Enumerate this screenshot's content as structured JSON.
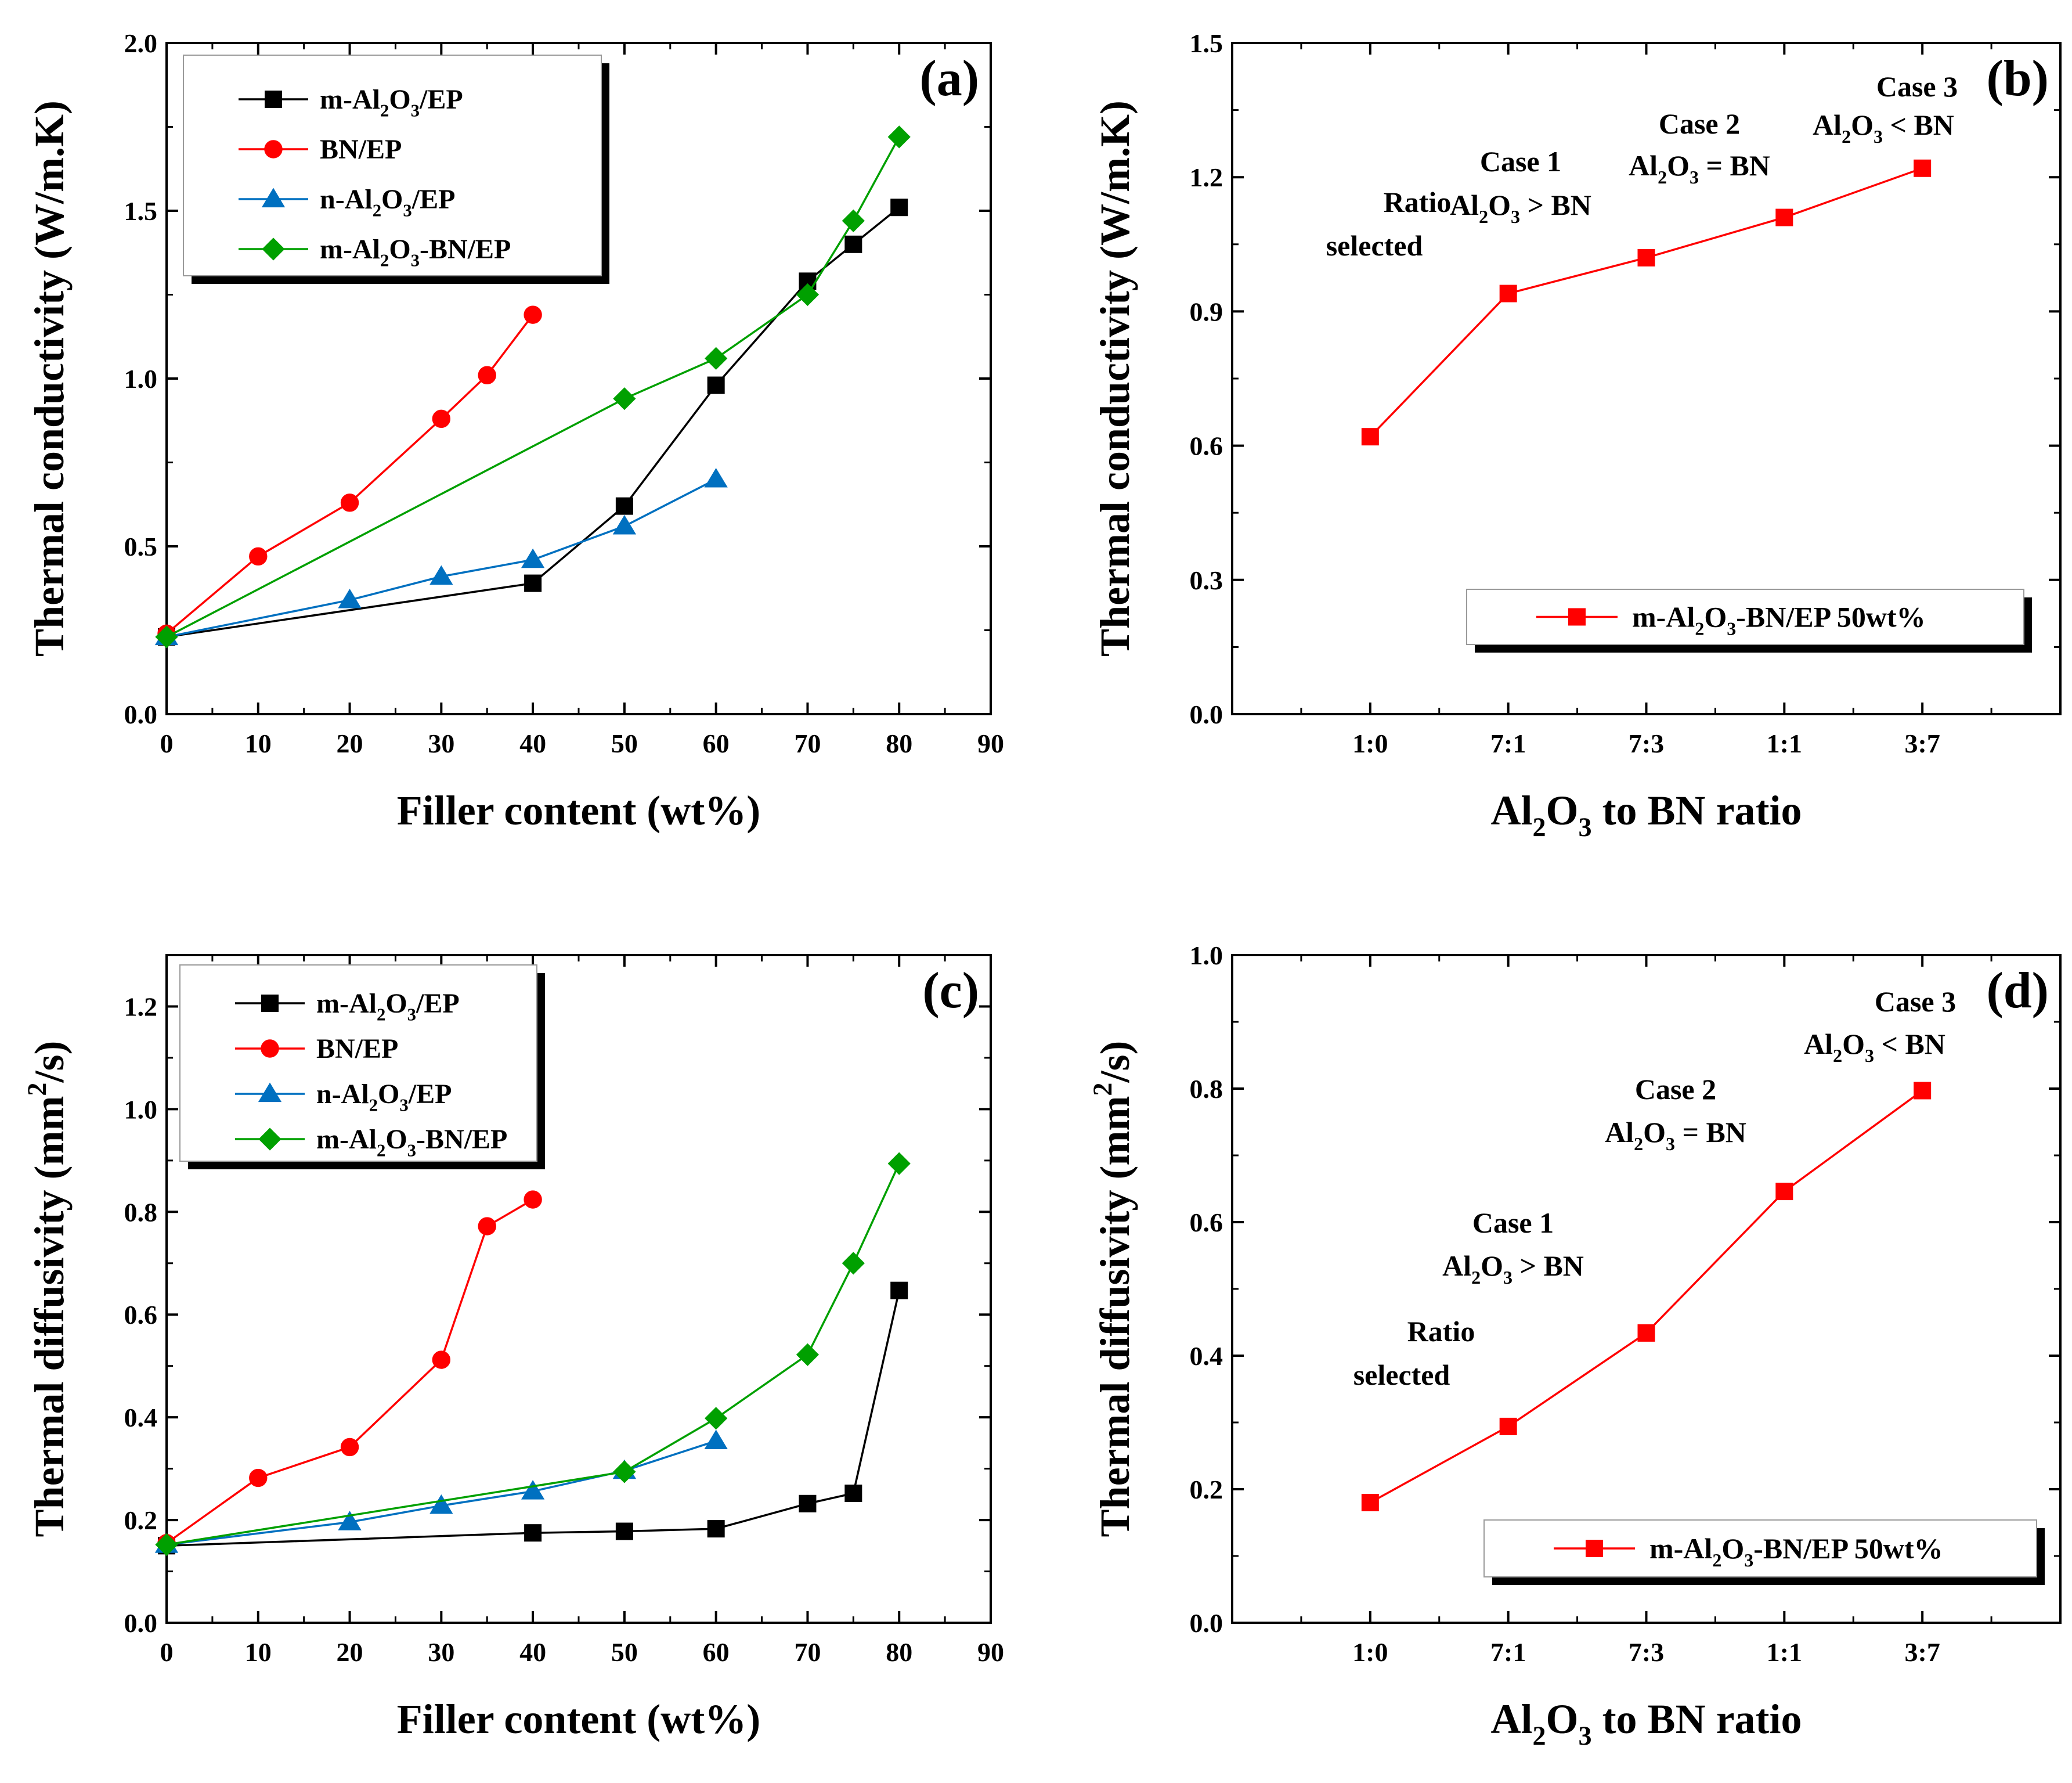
{
  "chart_data": [
    {
      "id": "a",
      "type": "line",
      "panel_label": "(a)",
      "xlabel": "Filler content (wt%)",
      "ylabel": "Thermal conductivity (W/m.K)",
      "xlim": [
        0,
        90
      ],
      "ylim": [
        0,
        2.0
      ],
      "xticks": [
        0,
        10,
        20,
        30,
        40,
        50,
        60,
        70,
        80,
        90
      ],
      "yticks": [
        0.0,
        0.5,
        1.0,
        1.5,
        2.0
      ],
      "ytick_decimals": 1,
      "legend_position": "top-left",
      "series": [
        {
          "name": "m-Al2O3/EP",
          "color": "#000000",
          "marker": "square",
          "x": [
            0,
            40,
            50,
            60,
            70,
            75,
            80
          ],
          "y": [
            0.23,
            0.39,
            0.62,
            0.98,
            1.29,
            1.4,
            1.51
          ]
        },
        {
          "name": "BN/EP",
          "color": "#ff0000",
          "marker": "circle",
          "x": [
            0,
            10,
            20,
            30,
            35,
            40
          ],
          "y": [
            0.24,
            0.47,
            0.63,
            0.88,
            1.01,
            1.19
          ]
        },
        {
          "name": "n-Al2O3/EP",
          "color": "#0070c0",
          "marker": "triangle",
          "x": [
            0,
            20,
            30,
            40,
            50,
            60
          ],
          "y": [
            0.23,
            0.34,
            0.41,
            0.46,
            0.56,
            0.7
          ]
        },
        {
          "name": "m-Al2O3-BN/EP",
          "color": "#00a000",
          "marker": "diamond",
          "x": [
            0,
            50,
            60,
            70,
            75,
            80
          ],
          "y": [
            0.23,
            0.94,
            1.06,
            1.25,
            1.47,
            1.72
          ]
        }
      ]
    },
    {
      "id": "b",
      "type": "line",
      "panel_label": "(b)",
      "xlabel": "Al2O3 to BN ratio",
      "ylabel": "Thermal conductivity (W/m.K)",
      "categories": [
        "1:0",
        "7:1",
        "7:3",
        "1:1",
        "3:7"
      ],
      "ylim": [
        0,
        1.5
      ],
      "yticks": [
        0.0,
        0.3,
        0.6,
        0.9,
        1.2,
        1.5
      ],
      "ytick_decimals": 1,
      "legend_position": "bottom-right",
      "series": [
        {
          "name": "m-Al2O3-BN/EP 50wt%",
          "color": "#ff0000",
          "marker": "square",
          "values": [
            0.62,
            0.94,
            1.02,
            1.11,
            1.22
          ]
        }
      ],
      "annotations": [
        {
          "lines": [
            "Ratio",
            "selected"
          ],
          "category": "7:1"
        },
        {
          "lines": [
            "Case 1",
            "Al2O3 > BN"
          ],
          "category": "7:3"
        },
        {
          "lines": [
            "Case 2",
            "Al2O3 = BN"
          ],
          "category": "1:1"
        },
        {
          "lines": [
            "Case 3",
            "Al2O3 < BN"
          ],
          "category": "3:7"
        }
      ]
    },
    {
      "id": "c",
      "type": "line",
      "panel_label": "(c)",
      "xlabel": "Filler content (wt%)",
      "ylabel": "Thermal diffusivity (mm2/s)",
      "xlim": [
        0,
        90
      ],
      "ylim": [
        0,
        1.3
      ],
      "xticks": [
        0,
        10,
        20,
        30,
        40,
        50,
        60,
        70,
        80,
        90
      ],
      "yticks": [
        0.0,
        0.2,
        0.4,
        0.6,
        0.8,
        1.0,
        1.2
      ],
      "ytick_decimals": 1,
      "legend_position": "top-left",
      "series": [
        {
          "name": "m-Al2O3/EP",
          "color": "#000000",
          "marker": "square",
          "x": [
            0,
            40,
            50,
            60,
            70,
            75,
            80
          ],
          "y": [
            0.15,
            0.175,
            0.178,
            0.183,
            0.232,
            0.252,
            0.647
          ]
        },
        {
          "name": "BN/EP",
          "color": "#ff0000",
          "marker": "circle",
          "x": [
            0,
            10,
            20,
            30,
            35,
            40
          ],
          "y": [
            0.155,
            0.282,
            0.342,
            0.512,
            0.772,
            0.824
          ]
        },
        {
          "name": "n-Al2O3/EP",
          "color": "#0070c0",
          "marker": "triangle",
          "x": [
            0,
            20,
            30,
            40,
            50,
            60
          ],
          "y": [
            0.152,
            0.196,
            0.228,
            0.256,
            0.296,
            0.354
          ]
        },
        {
          "name": "m-Al2O3-BN/EP",
          "color": "#00a000",
          "marker": "diamond",
          "x": [
            0,
            50,
            60,
            70,
            75,
            80
          ],
          "y": [
            0.152,
            0.294,
            0.398,
            0.522,
            0.7,
            0.894
          ]
        }
      ]
    },
    {
      "id": "d",
      "type": "line",
      "panel_label": "(d)",
      "xlabel": "Al2O3 to BN ratio",
      "ylabel": "Thermal diffusivity (mm2/s)",
      "categories": [
        "1:0",
        "7:1",
        "7:3",
        "1:1",
        "3:7"
      ],
      "ylim": [
        0,
        1.0
      ],
      "yticks": [
        0.0,
        0.2,
        0.4,
        0.6,
        0.8,
        1.0
      ],
      "ytick_decimals": 1,
      "legend_position": "bottom-right",
      "series": [
        {
          "name": "m-Al2O3-BN/EP 50wt%",
          "color": "#ff0000",
          "marker": "square",
          "values": [
            0.18,
            0.294,
            0.434,
            0.646,
            0.797
          ]
        }
      ],
      "annotations": [
        {
          "lines": [
            "Ratio",
            "selected"
          ],
          "category": "7:1"
        },
        {
          "lines": [
            "Case 1",
            "Al2O3 > BN"
          ],
          "category": "7:3"
        },
        {
          "lines": [
            "Case 2",
            "Al2O3 = BN"
          ],
          "category": "1:1"
        },
        {
          "lines": [
            "Case 3",
            "Al2O3 < BN"
          ],
          "category": "3:7"
        }
      ]
    }
  ]
}
